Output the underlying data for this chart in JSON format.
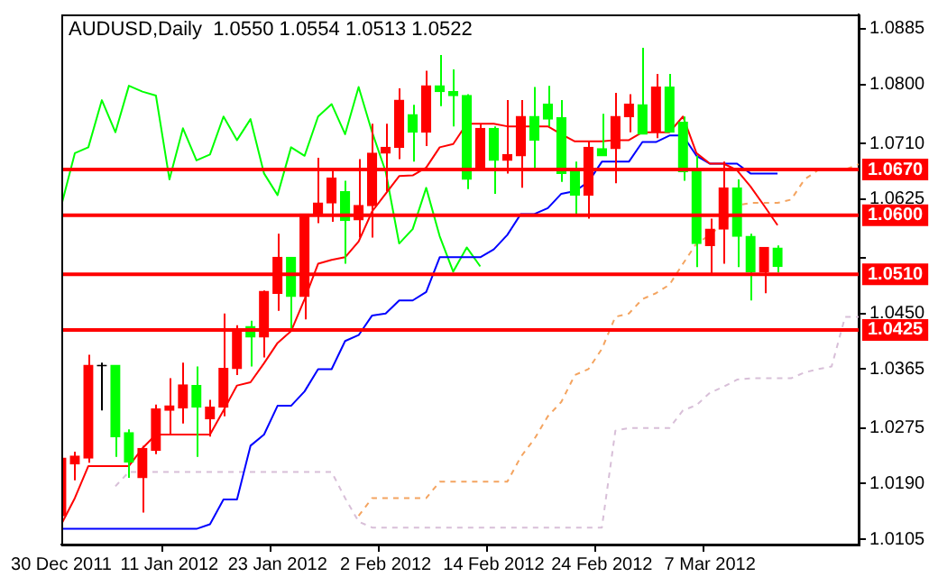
{
  "chart_data": {
    "type": "candlestick",
    "title": "AUDUSD,Daily  1.0550 1.0554 1.0513 1.0522",
    "categories": [
      "30 Dec 2011",
      null,
      null,
      null,
      null,
      null,
      null,
      null,
      "11 Jan 2012",
      null,
      null,
      null,
      null,
      null,
      null,
      null,
      "23 Jan 2012",
      null,
      null,
      null,
      null,
      null,
      null,
      null,
      "2 Feb 2012",
      null,
      null,
      null,
      null,
      null,
      null,
      null,
      "14 Feb 2012",
      null,
      null,
      null,
      null,
      null,
      null,
      null,
      "24 Feb 2012",
      null,
      null,
      null,
      null,
      null,
      null,
      null,
      "7 Mar 2012",
      null,
      null,
      null,
      null,
      null,
      null,
      null,
      null,
      null,
      null,
      null
    ],
    "ohlc": [
      [
        1.0141,
        1.0235,
        1.013,
        1.0229
      ],
      [
        1.022,
        1.0239,
        1.0195,
        1.0232
      ],
      [
        1.0229,
        1.0387,
        1.0222,
        1.0371
      ],
      [
        1.0371,
        1.0375,
        1.0302,
        1.037
      ],
      [
        1.0371,
        1.0371,
        1.0231,
        1.0262
      ],
      [
        1.0268,
        1.0273,
        1.0199,
        1.0223
      ],
      [
        1.0199,
        1.0248,
        1.0146,
        1.0244
      ],
      [
        1.0241,
        1.0311,
        1.0235,
        1.0304
      ],
      [
        1.0302,
        1.0351,
        1.0266,
        1.0309
      ],
      [
        1.0306,
        1.0375,
        1.0282,
        1.0341
      ],
      [
        1.034,
        1.0369,
        1.0231,
        1.0307
      ],
      [
        1.0289,
        1.0318,
        1.0262,
        1.0307
      ],
      [
        1.0307,
        1.045,
        1.0293,
        1.0366
      ],
      [
        1.0366,
        1.0432,
        1.0356,
        1.0427
      ],
      [
        1.043,
        1.0439,
        1.0369,
        1.0414
      ],
      [
        1.0414,
        1.0485,
        1.0383,
        1.0484
      ],
      [
        1.0481,
        1.0572,
        1.0454,
        1.0536
      ],
      [
        1.0536,
        1.0536,
        1.0427,
        1.0476
      ],
      [
        1.0476,
        1.0602,
        1.0441,
        1.0602
      ],
      [
        1.0602,
        1.0688,
        1.0588,
        1.0619
      ],
      [
        1.0619,
        1.067,
        1.059,
        1.0657
      ],
      [
        1.0636,
        1.0653,
        1.0526,
        1.0592
      ],
      [
        1.0593,
        1.0686,
        1.0566,
        1.0615
      ],
      [
        1.0615,
        1.074,
        1.0566,
        1.0695
      ],
      [
        1.0695,
        1.074,
        1.0637,
        1.0704
      ],
      [
        1.0704,
        1.0794,
        1.0686,
        1.0776
      ],
      [
        1.0754,
        1.0769,
        1.0682,
        1.0727
      ],
      [
        1.0727,
        1.0821,
        1.0706,
        1.0798
      ],
      [
        1.0798,
        1.0845,
        1.0767,
        1.0789
      ],
      [
        1.0789,
        1.0823,
        1.0736,
        1.0783
      ],
      [
        1.0783,
        1.0785,
        1.064,
        1.0655
      ],
      [
        1.067,
        1.074,
        1.0669,
        1.0733
      ],
      [
        1.0733,
        1.0736,
        1.0633,
        1.0684
      ],
      [
        1.0684,
        1.0776,
        1.0664,
        1.0693
      ],
      [
        1.0691,
        1.0776,
        1.0642,
        1.0751
      ],
      [
        1.0751,
        1.0796,
        1.067,
        1.0715
      ],
      [
        1.077,
        1.0798,
        1.0736,
        1.0747
      ],
      [
        1.0749,
        1.0776,
        1.0651,
        1.0664
      ],
      [
        1.0667,
        1.0682,
        1.0602,
        1.0631
      ],
      [
        1.0631,
        1.0713,
        1.0595,
        1.0704
      ],
      [
        1.0702,
        1.0755,
        1.0691,
        1.0691
      ],
      [
        1.0702,
        1.0787,
        1.0649,
        1.0751
      ],
      [
        1.0751,
        1.0785,
        1.0727,
        1.077
      ],
      [
        1.0769,
        1.0856,
        1.0724,
        1.0724
      ],
      [
        1.0727,
        1.0816,
        1.0718,
        1.0796
      ],
      [
        1.0796,
        1.0816,
        1.0727,
        1.0727
      ],
      [
        1.0742,
        1.0751,
        1.0653,
        1.0667
      ],
      [
        1.0669,
        1.0691,
        1.0521,
        1.0557
      ],
      [
        1.0554,
        1.0595,
        1.0508,
        1.0579
      ],
      [
        1.0579,
        1.0682,
        1.0526,
        1.0642
      ],
      [
        1.0642,
        1.0655,
        1.0521,
        1.0568
      ],
      [
        1.0568,
        1.0572,
        1.047,
        1.0514
      ],
      [
        1.0514,
        1.0551,
        1.0481,
        1.0551
      ],
      [
        1.055,
        1.0554,
        1.0513,
        1.0522
      ],
      null,
      null,
      null,
      null,
      null,
      null
    ],
    "colors": [
      "#ff0000",
      "#ff0000",
      "#ff0000",
      "#000000",
      "#00ff00",
      "#00ff00",
      "#ff0000",
      "#ff0000",
      "#ff0000",
      "#ff0000",
      "#00ff00",
      "#ff0000",
      "#ff0000",
      "#ff0000",
      "#00ff00",
      "#ff0000",
      "#ff0000",
      "#00ff00",
      "#ff0000",
      "#ff0000",
      "#ff0000",
      "#00ff00",
      "#ff0000",
      "#ff0000",
      "#ff0000",
      "#ff0000",
      "#00ff00",
      "#ff0000",
      "#00ff00",
      "#00ff00",
      "#00ff00",
      "#ff0000",
      "#00ff00",
      "#ff0000",
      "#ff0000",
      "#00ff00",
      "#00ff00",
      "#00ff00",
      "#00ff00",
      "#ff0000",
      "#00ff00",
      "#ff0000",
      "#ff0000",
      "#00ff00",
      "#ff0000",
      "#00ff00",
      "#00ff00",
      "#00ff00",
      "#ff0000",
      "#ff0000",
      "#00ff00",
      "#00ff00",
      "#ff0000",
      "#00ff00",
      null,
      null,
      null,
      null,
      null,
      null
    ],
    "series": [
      {
        "type": "line",
        "color": "#ff0000",
        "values": [
          1.0128,
          1.0168,
          1.0217,
          1.0217,
          1.0217,
          1.0217,
          1.0244,
          1.0265,
          1.0265,
          1.0265,
          1.0265,
          1.0265,
          1.0302,
          1.034,
          1.0345,
          1.0374,
          1.0405,
          1.0423,
          1.0472,
          1.0526,
          1.0532,
          1.0536,
          1.056,
          1.0606,
          1.0633,
          1.066,
          1.0661,
          1.0673,
          1.0704,
          1.0709,
          1.074,
          1.074,
          1.074,
          1.0736,
          1.0736,
          1.0736,
          1.0736,
          1.0724,
          1.0713,
          1.0713,
          1.0713,
          1.0715,
          1.0715,
          1.0727,
          1.0727,
          1.0727,
          1.0751,
          1.0695,
          1.0679,
          1.0679,
          1.0669,
          1.0644,
          1.0615,
          1.0585,
          null,
          null,
          null,
          null,
          null,
          null
        ]
      },
      {
        "type": "line",
        "color": "#0000ff",
        "values": [
          1.0121,
          1.0121,
          1.0121,
          1.0121,
          1.0121,
          1.0121,
          1.0121,
          1.0121,
          1.0121,
          1.0121,
          1.0121,
          1.0128,
          1.0166,
          1.0166,
          1.0248,
          1.0265,
          1.0309,
          1.0309,
          1.0331,
          1.0365,
          1.0365,
          1.0408,
          1.0417,
          1.0447,
          1.045,
          1.047,
          1.047,
          1.0483,
          1.0536,
          1.0536,
          1.0536,
          1.0536,
          1.0548,
          1.057,
          1.0602,
          1.0602,
          1.0611,
          1.0633,
          1.0637,
          1.0651,
          1.0682,
          1.0682,
          1.0682,
          1.0712,
          1.0712,
          1.0722,
          1.0722,
          1.0691,
          1.0679,
          1.0679,
          1.0679,
          1.0664,
          1.0664,
          1.0664,
          null,
          null,
          null,
          null,
          null,
          null
        ]
      },
      {
        "type": "line",
        "color": "#00ff00",
        "values": [
          1.0615,
          1.0695,
          1.0704,
          1.0776,
          1.0727,
          1.0798,
          1.0789,
          1.0783,
          1.0655,
          1.0733,
          1.0684,
          1.0693,
          1.0751,
          1.0715,
          1.0747,
          1.0664,
          1.0631,
          1.0704,
          1.0691,
          1.0751,
          1.077,
          1.0724,
          1.0796,
          1.0727,
          1.0667,
          1.0557,
          1.0579,
          1.0642,
          1.0568,
          1.0514,
          1.0551,
          1.0522,
          null,
          null,
          null,
          null,
          null,
          null,
          null,
          null,
          null,
          null,
          null,
          null,
          null,
          null,
          null,
          null,
          null,
          null,
          null,
          null,
          null,
          null,
          null,
          null,
          null,
          null,
          null,
          null
        ]
      },
      {
        "type": "line",
        "color": "#f4a460",
        "line_style": "dashed",
        "values": [
          null,
          null,
          null,
          null,
          null,
          null,
          null,
          null,
          null,
          null,
          null,
          null,
          null,
          null,
          null,
          null,
          null,
          null,
          null,
          null,
          null,
          null,
          1.0141,
          1.0168,
          1.0168,
          1.0168,
          1.0168,
          1.0168,
          1.0193,
          1.0193,
          1.0193,
          1.0193,
          1.0193,
          1.0193,
          1.0231,
          1.0258,
          1.0293,
          1.0315,
          1.0356,
          1.0365,
          1.0396,
          1.0445,
          1.045,
          1.0472,
          1.0481,
          1.0494,
          1.0526,
          1.0557,
          1.057,
          1.0588,
          1.0615,
          1.0619,
          1.0619,
          1.0619,
          1.0624,
          1.0655,
          1.0669,
          1.067,
          1.067,
          1.0678
        ]
      },
      {
        "type": "line",
        "color": "#d8bfd8",
        "line_style": "dashed",
        "values": [
          null,
          null,
          null,
          null,
          1.0186,
          1.0208,
          1.0208,
          1.0208,
          1.0208,
          1.0208,
          1.0208,
          1.0208,
          1.0208,
          1.0208,
          1.0208,
          1.0208,
          1.0208,
          1.0208,
          1.0208,
          1.0208,
          1.0208,
          1.0168,
          1.0132,
          1.0123,
          1.0123,
          1.0123,
          1.0123,
          1.0123,
          1.0123,
          1.0123,
          1.0123,
          1.0123,
          1.0123,
          1.0123,
          1.0123,
          1.0123,
          1.0123,
          1.0123,
          1.0123,
          1.0123,
          1.0123,
          1.0271,
          1.0275,
          1.0275,
          1.0275,
          1.0275,
          1.0302,
          1.031,
          1.0329,
          1.0338,
          1.0349,
          1.0351,
          1.0351,
          1.0351,
          1.0351,
          1.036,
          1.0365,
          1.0369,
          1.0445,
          1.0445
        ]
      }
    ],
    "ylim": [
      1.0097,
      1.0907
    ],
    "yticks": [
      1.0885,
      {
        "value": 1.08,
        "label": "1.0800"
      },
      {
        "value": 1.071,
        "label": "1.0710"
      },
      1.0625,
      {
        "value": 1.0535,
        "label": null
      },
      {
        "value": 1.045,
        "label": "1.0450"
      },
      1.0365,
      1.0275,
      {
        "value": 1.019,
        "label": "1.0190"
      },
      1.0105
    ],
    "ref_lines": [
      {
        "axis": "y",
        "value": 1.067,
        "label": "1.0670",
        "color": "#ff0000"
      },
      {
        "axis": "y",
        "value": 1.06,
        "label": "1.0600",
        "color": "#ff0000"
      },
      {
        "axis": "y",
        "value": 1.051,
        "label": "1.0510",
        "color": "#ff0000"
      },
      {
        "axis": "y",
        "value": 1.0425,
        "label": "1.0425",
        "color": "#ff0000"
      }
    ],
    "legend": false,
    "grid": false
  }
}
